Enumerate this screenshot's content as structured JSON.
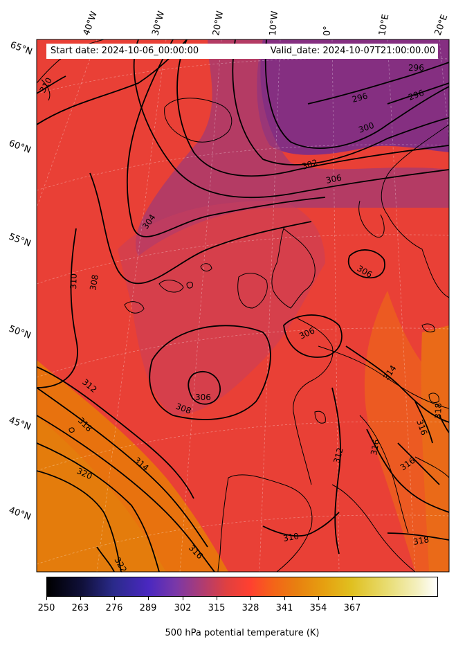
{
  "header": {
    "start_label": "Start date: 2024-10-06_00:00:00",
    "valid_label": "Valid_date: 2024-10-07T21:00:00.00"
  },
  "longitude_labels": [
    "40°W",
    "30°W",
    "20°W",
    "10°W",
    "0°",
    "10°E",
    "20°E"
  ],
  "latitude_labels": [
    "65°N",
    "60°N",
    "55°N",
    "50°N",
    "45°N",
    "40°N"
  ],
  "contour_labels": [
    "296",
    "296",
    "296",
    "300",
    "302",
    "306",
    "304",
    "310",
    "308",
    "306",
    "306",
    "312",
    "318",
    "308",
    "306",
    "320",
    "314",
    "316",
    "322",
    "312",
    "310",
    "314",
    "316",
    "316",
    "316",
    "318",
    "318",
    "310"
  ],
  "colorbar": {
    "ticks": [
      "250",
      "263",
      "276",
      "289",
      "302",
      "315",
      "328",
      "341",
      "354",
      "367"
    ],
    "title": "500 hPa potential temperature (K)",
    "colors": {
      "low": "#000000",
      "purple": "#4a28c0",
      "mid": "#b03c70",
      "red": "#ff4030",
      "orange": "#e88010",
      "yellow": "#e0c020",
      "high": "#ffffff"
    }
  }
}
